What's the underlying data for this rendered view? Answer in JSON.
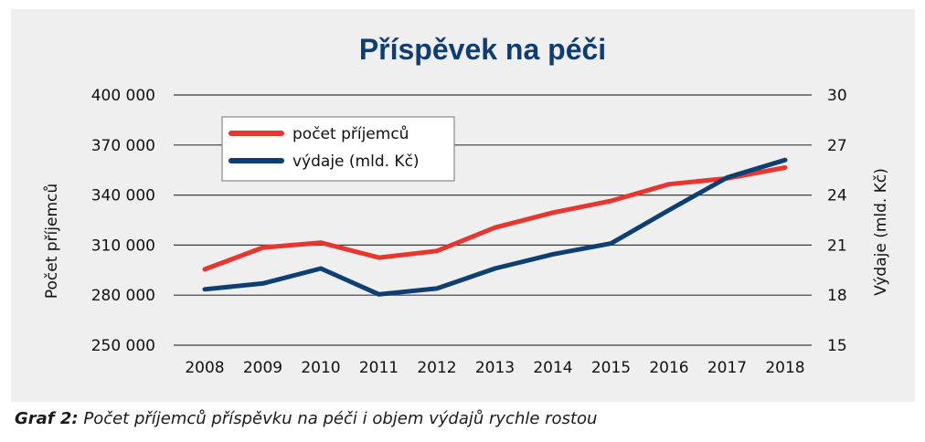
{
  "chart_data": {
    "type": "line",
    "title": "Příspěvek na péči",
    "x": [
      2008,
      2009,
      2010,
      2011,
      2012,
      2013,
      2014,
      2015,
      2016,
      2017,
      2018
    ],
    "x_tick_labels": [
      "2008",
      "2009",
      "2010",
      "2011",
      "2012",
      "2013",
      "2014",
      "2015",
      "2016",
      "2017",
      "2018"
    ],
    "y_left": {
      "label": "Počet příjemců",
      "range": [
        250000,
        400000
      ],
      "ticks": [
        250000,
        280000,
        310000,
        340000,
        370000,
        400000
      ],
      "tick_labels": [
        "250 000",
        "280 000",
        "310 000",
        "340 000",
        "370 000",
        "400 000"
      ]
    },
    "y_right": {
      "label": "Výdaje (mld. Kč)",
      "range": [
        15,
        30
      ],
      "ticks": [
        15,
        18,
        21,
        24,
        27,
        30
      ],
      "tick_labels": [
        "15",
        "18",
        "21",
        "24",
        "27",
        "30"
      ]
    },
    "series": [
      {
        "name": "počet příjemců",
        "axis": "left",
        "color": "#e8352e",
        "values": [
          295500,
          308500,
          311500,
          302500,
          306500,
          320500,
          329500,
          336500,
          346500,
          350000,
          356500
        ]
      },
      {
        "name": "výdaje (mld. Kč)",
        "axis": "right",
        "color": "#0d3f73",
        "values": [
          18.35,
          18.7,
          19.6,
          18.05,
          18.4,
          19.6,
          20.45,
          21.1,
          23.1,
          25.05,
          26.1
        ]
      }
    ],
    "grid": "horizontal",
    "legend_position": "top-left"
  },
  "caption": {
    "label": "Graf 2:",
    "text": " Počet příjemců příspěvku na péči i objem výdajů rychle rostou"
  }
}
